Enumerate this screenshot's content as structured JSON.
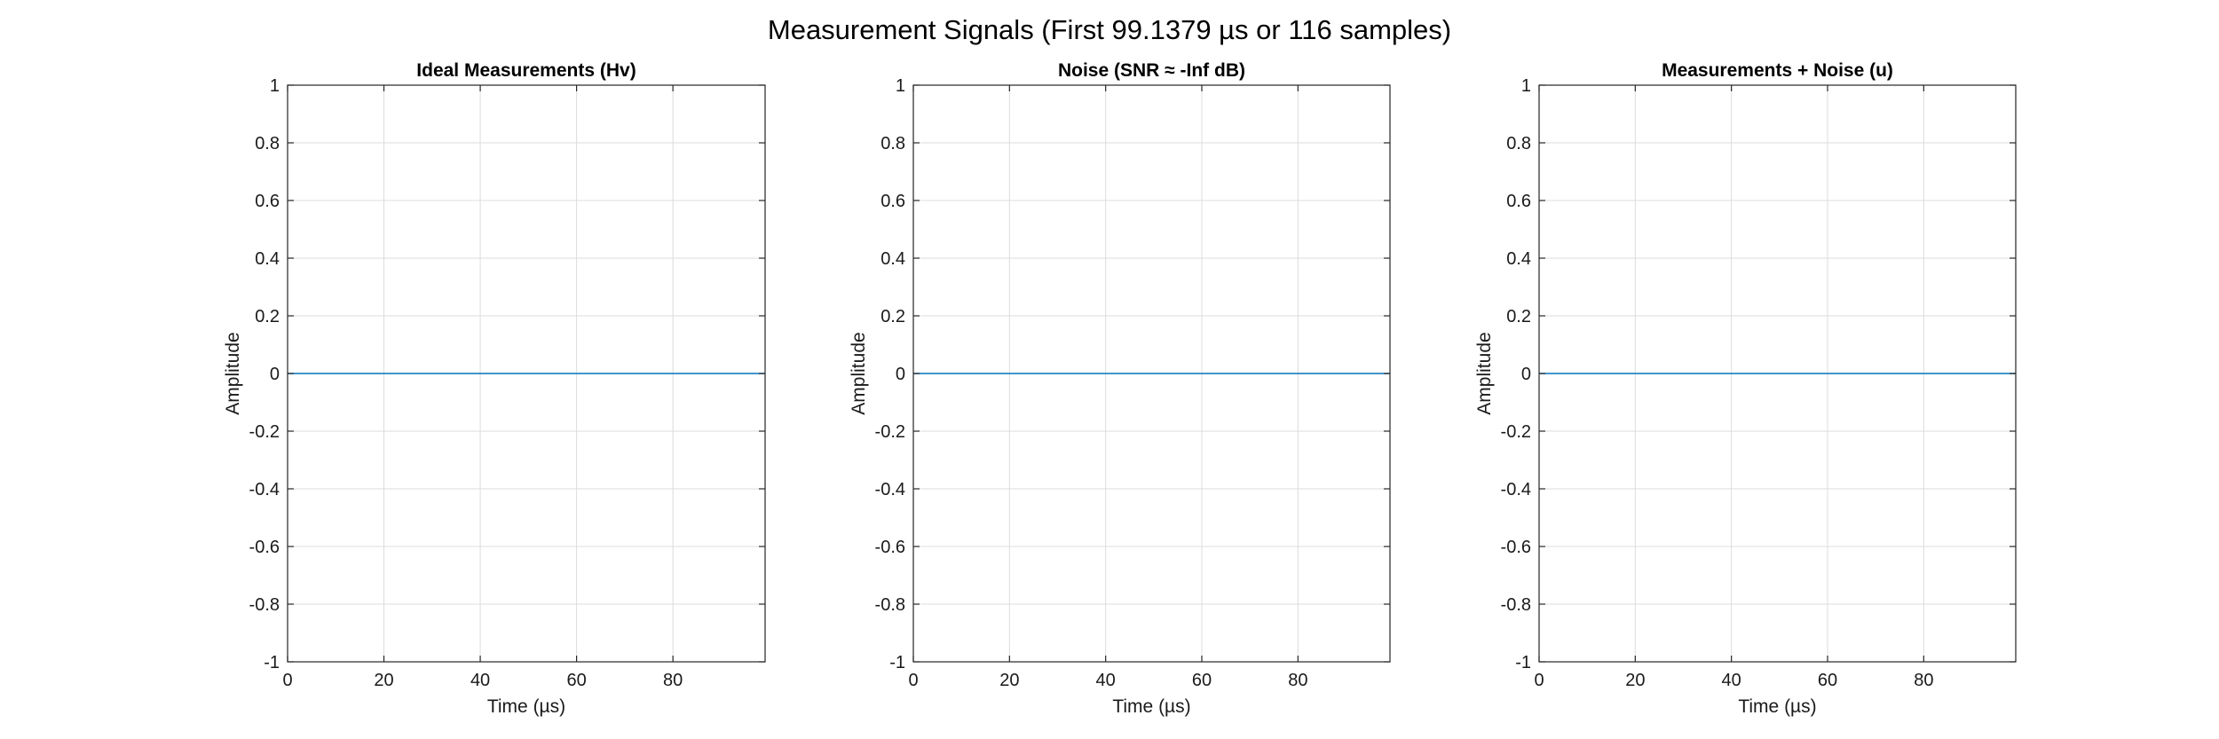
{
  "figure": {
    "suptitle": "Measurement Signals (First 99.1379 µs or 116 samples)"
  },
  "chart_data": [
    {
      "type": "line",
      "title": "Ideal Measurements (Hv)",
      "xlabel": "Time (µs)",
      "ylabel": "Amplitude",
      "xlim": [
        0,
        99.1379
      ],
      "ylim": [
        -1,
        1
      ],
      "xticks": [
        0,
        20,
        40,
        60,
        80
      ],
      "yticks": [
        -1,
        -0.8,
        -0.6,
        -0.4,
        -0.2,
        0,
        0.2,
        0.4,
        0.6,
        0.8,
        1
      ],
      "grid": true,
      "series": [
        {
          "color": "#0072BD",
          "x": [
            0,
            99.1379
          ],
          "y": [
            0,
            0
          ]
        }
      ]
    },
    {
      "type": "line",
      "title": "Noise (SNR ≈ -Inf dB)",
      "xlabel": "Time (µs)",
      "ylabel": "Amplitude",
      "xlim": [
        0,
        99.1379
      ],
      "ylim": [
        -1,
        1
      ],
      "xticks": [
        0,
        20,
        40,
        60,
        80
      ],
      "yticks": [
        -1,
        -0.8,
        -0.6,
        -0.4,
        -0.2,
        0,
        0.2,
        0.4,
        0.6,
        0.8,
        1
      ],
      "grid": true,
      "series": [
        {
          "color": "#0072BD",
          "x": [
            0,
            99.1379
          ],
          "y": [
            0,
            0
          ]
        }
      ]
    },
    {
      "type": "line",
      "title": "Measurements + Noise (u)",
      "xlabel": "Time (µs)",
      "ylabel": "Amplitude",
      "xlim": [
        0,
        99.1379
      ],
      "ylim": [
        -1,
        1
      ],
      "xticks": [
        0,
        20,
        40,
        60,
        80
      ],
      "yticks": [
        -1,
        -0.8,
        -0.6,
        -0.4,
        -0.2,
        0,
        0.2,
        0.4,
        0.6,
        0.8,
        1
      ],
      "grid": true,
      "series": [
        {
          "color": "#0072BD",
          "x": [
            0,
            99.1379
          ],
          "y": [
            0,
            0
          ]
        }
      ]
    }
  ]
}
